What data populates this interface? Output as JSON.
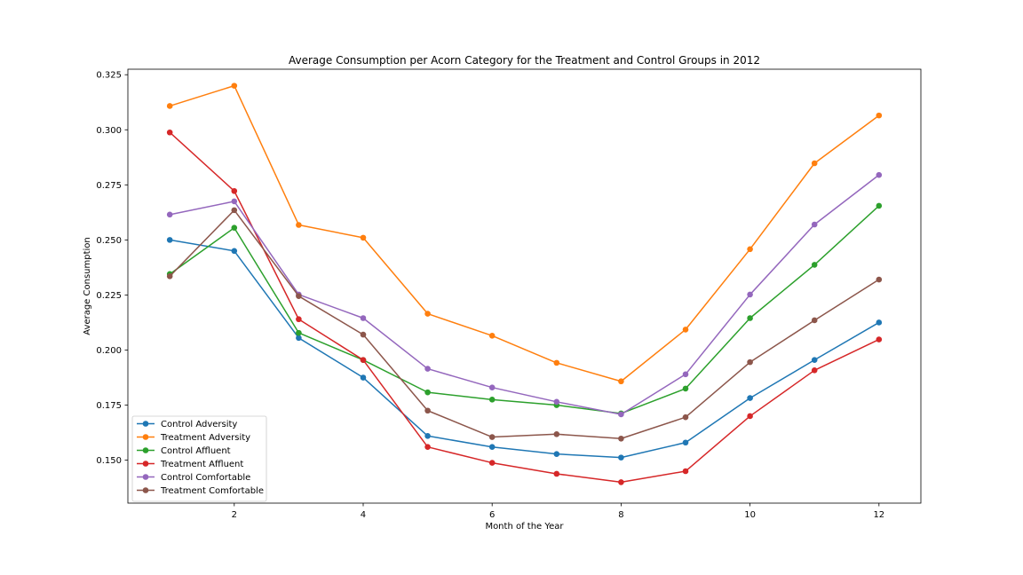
{
  "chart_data": {
    "type": "line",
    "title": "Average Consumption per Acorn Category for the Treatment and Control Groups in 2012",
    "xlabel": "Month of the Year",
    "ylabel": "Average Consumption",
    "xlim": [
      0.35,
      12.65
    ],
    "ylim": [
      0.1305,
      0.3275
    ],
    "xticks": [
      2,
      4,
      6,
      8,
      10,
      12
    ],
    "yticks": [
      0.15,
      0.175,
      0.2,
      0.225,
      0.25,
      0.275,
      0.3,
      0.325
    ],
    "ytick_labels": [
      "0.150",
      "0.175",
      "0.200",
      "0.225",
      "0.250",
      "0.275",
      "0.300",
      "0.325"
    ],
    "grid": false,
    "legend_position": "lower-left",
    "x": [
      1,
      2,
      3,
      4,
      5,
      6,
      7,
      8,
      9,
      10,
      11,
      12
    ],
    "series": [
      {
        "name": "Control Adversity",
        "color": "#1f77b4",
        "values": [
          0.25,
          0.245,
          0.2055,
          0.1875,
          0.161,
          0.156,
          0.1528,
          0.1512,
          0.158,
          0.1782,
          0.1955,
          0.2125
        ]
      },
      {
        "name": "Treatment Adversity",
        "color": "#ff7f0e",
        "values": [
          0.3108,
          0.32,
          0.2568,
          0.251,
          0.2165,
          0.2065,
          0.1942,
          0.1858,
          0.2093,
          0.2458,
          0.2848,
          0.3065
        ]
      },
      {
        "name": "Control Affluent",
        "color": "#2ca02c",
        "values": [
          0.2345,
          0.2555,
          0.2078,
          0.1955,
          0.1808,
          0.1775,
          0.175,
          0.1712,
          0.1825,
          0.2145,
          0.2387,
          0.2655
        ]
      },
      {
        "name": "Treatment Affluent",
        "color": "#d62728",
        "values": [
          0.2988,
          0.2722,
          0.214,
          0.1955,
          0.156,
          0.1488,
          0.1438,
          0.14,
          0.145,
          0.17,
          0.1908,
          0.2048
        ]
      },
      {
        "name": "Control Comfortable",
        "color": "#9467bd",
        "values": [
          0.2615,
          0.2675,
          0.2252,
          0.2145,
          0.1915,
          0.183,
          0.1765,
          0.1708,
          0.189,
          0.2252,
          0.257,
          0.2795
        ]
      },
      {
        "name": "Treatment Comfortable",
        "color": "#8c564b",
        "values": [
          0.2335,
          0.2635,
          0.2245,
          0.207,
          0.1725,
          0.1605,
          0.1618,
          0.1598,
          0.1695,
          0.1945,
          0.2135,
          0.232
        ]
      }
    ]
  }
}
